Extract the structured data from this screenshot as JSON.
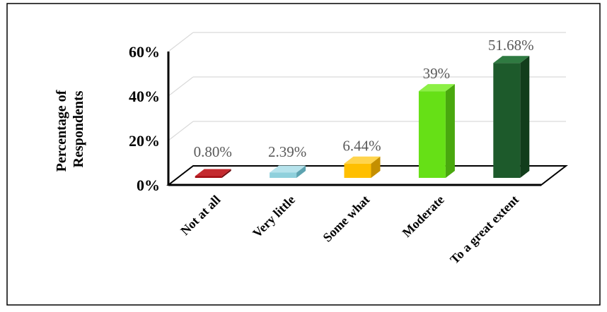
{
  "chart_data": {
    "type": "bar",
    "title": "",
    "xlabel": "",
    "ylabel": "Percentage of Respondents",
    "ylabel_lines": [
      "Percentage of",
      "Respondents"
    ],
    "categories": [
      "Not at all",
      "Very little",
      "Some what",
      "Moderate",
      "To a great extent"
    ],
    "values": [
      0.8,
      2.39,
      6.44,
      39,
      51.68
    ],
    "data_labels": [
      "0.80%",
      "2.39%",
      "6.44%",
      "39%",
      "51.68%"
    ],
    "yticks": [
      "0%",
      "20%",
      "40%",
      "60%"
    ],
    "ylim": [
      0,
      60
    ],
    "grid": true,
    "legend": "none",
    "colors": [
      "#a50f15",
      "#8fd0dc",
      "#ffbf00",
      "#66e016",
      "#1d5a2b"
    ],
    "side_colors": [
      "#6e0a0e",
      "#5da3b0",
      "#c48f00",
      "#49a80e",
      "#123d1b"
    ],
    "top_colors": [
      "#c42a2f",
      "#b6e3ec",
      "#ffd44d",
      "#8cf045",
      "#2f7a41"
    ]
  }
}
